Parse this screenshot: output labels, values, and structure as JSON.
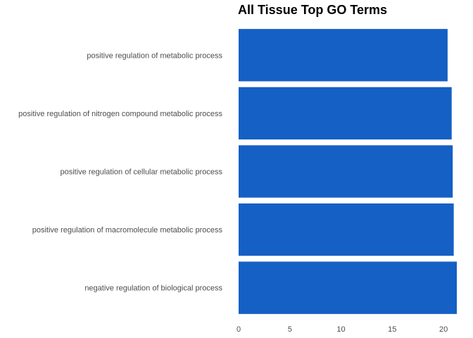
{
  "chart_data": {
    "type": "bar",
    "orientation": "horizontal",
    "title": "All Tissue Top GO Terms",
    "xlabel": "",
    "ylabel": "",
    "categories": [
      "positive regulation of metabolic process",
      "positive regulation of nitrogen compound metabolic process",
      "positive regulation of cellular metabolic process",
      "positive regulation of macromolecule metabolic process",
      "negative regulation of biological process"
    ],
    "values": [
      20.4,
      20.8,
      20.9,
      21.0,
      21.3
    ],
    "xlim": [
      0,
      21.3
    ],
    "xticks": [
      "0",
      "5",
      "10",
      "15",
      "20"
    ],
    "xtick_values": [
      0,
      5,
      10,
      15,
      20
    ],
    "bar_color": "#1560c4",
    "grid": false,
    "legend": "none"
  }
}
